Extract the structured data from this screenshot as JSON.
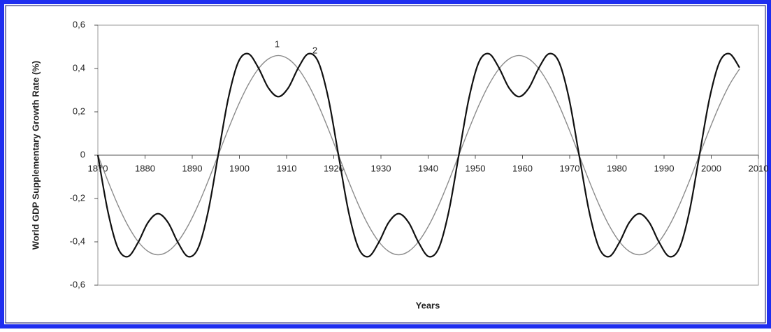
{
  "chart_data": {
    "type": "line",
    "y_label": "World GDP Supplementary Growth Rate (%)",
    "x_label": "Years",
    "annotations": [
      "1",
      "2"
    ],
    "xlim": [
      1870,
      2010
    ],
    "xticks": [
      1870,
      1880,
      1890,
      1900,
      1910,
      1920,
      1930,
      1940,
      1950,
      1960,
      1970,
      1980,
      1990,
      2000,
      2010
    ],
    "ylim": [
      -0.6,
      0.6
    ],
    "yticks": [
      {
        "value": -0.6,
        "label": "-0,6"
      },
      {
        "value": -0.4,
        "label": "-0,4"
      },
      {
        "value": -0.2,
        "label": "-0,2"
      },
      0,
      {
        "value": 0.2,
        "label": "0,2"
      },
      {
        "value": 0.4,
        "label": "0,4"
      },
      {
        "value": 0.6,
        "label": "0,6"
      }
    ],
    "x": [
      1870,
      1872.125,
      1874.25,
      1876.375,
      1878.5,
      1880.625,
      1882.75,
      1884.875,
      1887,
      1889.125,
      1891.25,
      1893.375,
      1895.5,
      1897.625,
      1899.75,
      1901.875,
      1904,
      1906.125,
      1908.25,
      1910.375,
      1912.5,
      1914.625,
      1916.75,
      1918.875,
      1921,
      1923.125,
      1925.25,
      1927.375,
      1929.5,
      1931.625,
      1933.75,
      1935.875,
      1938,
      1940.125,
      1942.25,
      1944.375,
      1946.5,
      1948.625,
      1950.75,
      1952.875,
      1955,
      1957.125,
      1959.25,
      1961.375,
      1963.5,
      1965.625,
      1967.75,
      1969.875,
      1972,
      1974.125,
      1976.25,
      1978.375,
      1980.5,
      1982.625,
      1984.75,
      1986.875,
      1989,
      1991.125,
      1993.25,
      1995.375,
      1997.5,
      1999.625,
      2001.75,
      2003.875,
      2006
    ],
    "series": [
      {
        "color": "#8c8c8c",
        "values": [
          0,
          -0.119,
          -0.23,
          -0.325,
          -0.398,
          -0.444,
          -0.46,
          -0.444,
          -0.398,
          -0.325,
          -0.23,
          -0.119,
          0,
          0.119,
          0.23,
          0.325,
          0.398,
          0.444,
          0.46,
          0.444,
          0.398,
          0.325,
          0.23,
          0.119,
          0,
          -0.119,
          -0.23,
          -0.325,
          -0.398,
          -0.444,
          -0.46,
          -0.444,
          -0.398,
          -0.325,
          -0.23,
          -0.119,
          0,
          0.119,
          0.23,
          0.325,
          0.398,
          0.444,
          0.46,
          0.444,
          0.398,
          0.325,
          0.23,
          0.119,
          0,
          -0.119,
          -0.23,
          -0.325,
          -0.398,
          -0.444,
          -0.46,
          -0.444,
          -0.398,
          -0.325,
          -0.23,
          -0.119,
          0,
          0.119,
          0.23,
          0.325,
          0.398
        ]
      },
      {
        "color": "#111111",
        "values": [
          0,
          -0.26,
          -0.429,
          -0.468,
          -0.404,
          -0.311,
          -0.27,
          -0.311,
          -0.404,
          -0.468,
          -0.429,
          -0.26,
          0,
          0.26,
          0.429,
          0.468,
          0.404,
          0.311,
          0.27,
          0.311,
          0.404,
          0.468,
          0.429,
          0.26,
          0,
          -0.26,
          -0.429,
          -0.468,
          -0.404,
          -0.311,
          -0.27,
          -0.311,
          -0.404,
          -0.468,
          -0.429,
          -0.26,
          0,
          0.26,
          0.429,
          0.468,
          0.404,
          0.311,
          0.27,
          0.311,
          0.404,
          0.468,
          0.429,
          0.26,
          0,
          -0.26,
          -0.429,
          -0.468,
          -0.404,
          -0.311,
          -0.27,
          -0.311,
          -0.404,
          -0.468,
          -0.429,
          -0.26,
          0,
          0.26,
          0.429,
          0.468,
          0.404
        ]
      }
    ]
  }
}
